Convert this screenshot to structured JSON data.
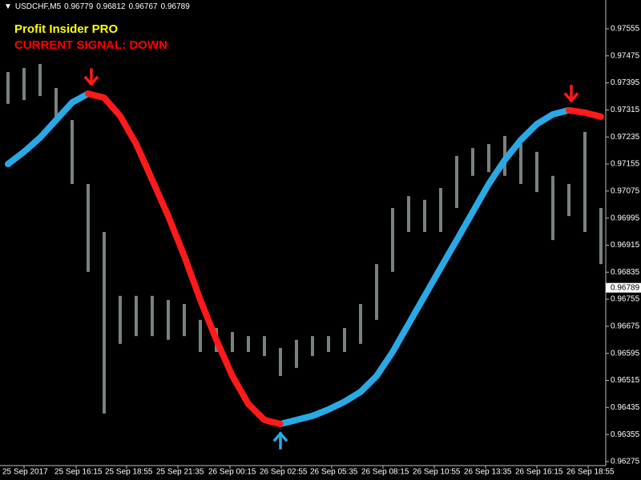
{
  "chart_data": {
    "type": "candlestick",
    "symbol": "USDCHF,M5",
    "header_prices": [
      0.96779,
      0.96812,
      0.96767,
      0.96789
    ],
    "title": "Profit Insider PRO",
    "title_color": "#ffff00",
    "subtitle": "CURRENT SIGNAL: DOWN",
    "subtitle_color": "#ff0000",
    "bar_color": "#8e9a94",
    "xlim": [
      -0.5,
      37.3
    ],
    "xticks": [
      {
        "value": 1,
        "label": "25 Sep 2017"
      },
      {
        "value": 4.25,
        "label": "25 Sep 16:15"
      },
      {
        "value": 7.4,
        "label": "25 Sep 18:55"
      },
      {
        "value": 10.6,
        "label": "25 Sep 21:35"
      },
      {
        "value": 13.85,
        "label": "26 Sep 00:15"
      },
      {
        "value": 17.05,
        "label": "26 Sep 02:55"
      },
      {
        "value": 20.2,
        "label": "26 Sep 05:35"
      },
      {
        "value": 23.4,
        "label": "26 Sep 08:15"
      },
      {
        "value": 26.6,
        "label": "26 Sep 10:55"
      },
      {
        "value": 29.8,
        "label": "26 Sep 13:35"
      },
      {
        "value": 33,
        "label": "26 Sep 16:15"
      },
      {
        "value": 36.2,
        "label": "26 Sep 18:55"
      }
    ],
    "ylim": [
      0.96263,
      0.97607
    ],
    "yticks": [
      0.97555,
      0.97475,
      0.97395,
      0.97315,
      0.97235,
      0.97155,
      0.97075,
      0.96995,
      0.96915,
      0.96835,
      0.96755,
      0.96675,
      0.96595,
      0.96515,
      0.96435,
      0.96355,
      0.96275
    ],
    "high": [
      0.97427,
      0.97439,
      0.97451,
      0.9738,
      0.97285,
      0.97096,
      0.96954,
      0.96765,
      0.96765,
      0.96765,
      0.96753,
      0.96741,
      0.96694,
      0.9667,
      0.96658,
      0.96646,
      0.96646,
      0.96611,
      0.96635,
      0.96646,
      0.96646,
      0.9667,
      0.96741,
      0.96859,
      0.97025,
      0.9706,
      0.97049,
      0.97084,
      0.97179,
      0.97202,
      0.97214,
      0.97238,
      0.97214,
      0.97191,
      0.9712,
      0.97096,
      0.9725,
      0.97025
    ],
    "low": [
      0.97333,
      0.97344,
      0.97356,
      0.97285,
      0.97096,
      0.96836,
      0.96417,
      0.96623,
      0.96646,
      0.96646,
      0.96635,
      0.96646,
      0.96599,
      0.96599,
      0.96599,
      0.96599,
      0.96587,
      0.96528,
      0.96552,
      0.96587,
      0.96599,
      0.96599,
      0.96623,
      0.96694,
      0.96836,
      0.96954,
      0.96954,
      0.96954,
      0.97025,
      0.9712,
      0.97131,
      0.9712,
      0.97096,
      0.97072,
      0.9693,
      0.97001,
      0.96954,
      0.96859
    ],
    "indicator": [
      {
        "color": "#29a9e6",
        "values": [
          0.97155,
          0.97191,
          0.97233,
          0.97285,
          0.97337,
          0.97363,
          null,
          null,
          null,
          null,
          null,
          null,
          null,
          null,
          null,
          null,
          null,
          0.96386,
          0.96398,
          0.9641,
          0.96429,
          0.96452,
          0.96481,
          0.96528,
          0.96599,
          0.96682,
          0.96765,
          0.96848,
          0.9693,
          0.97013,
          0.97096,
          0.97167,
          0.97226,
          0.97273,
          0.97302,
          0.97314,
          null,
          null
        ]
      },
      {
        "color": "#ff1a1a",
        "values": [
          null,
          null,
          null,
          null,
          null,
          0.97363,
          0.97351,
          0.97297,
          0.97214,
          0.97108,
          0.97001,
          0.96883,
          0.96753,
          0.96635,
          0.96528,
          0.96445,
          0.96398,
          0.96386,
          null,
          null,
          null,
          null,
          null,
          null,
          null,
          null,
          null,
          null,
          null,
          null,
          null,
          null,
          null,
          null,
          null,
          0.97314,
          0.97307,
          0.97295
        ]
      }
    ],
    "arrows": [
      {
        "x": 5.2,
        "y": 0.97363,
        "dir": "down",
        "color": "#ff1a1a"
      },
      {
        "x": 17,
        "y": 0.96386,
        "dir": "up",
        "color": "#29a9e6"
      },
      {
        "x": 35.15,
        "y": 0.97314,
        "dir": "down",
        "color": "#ff1a1a"
      }
    ]
  }
}
